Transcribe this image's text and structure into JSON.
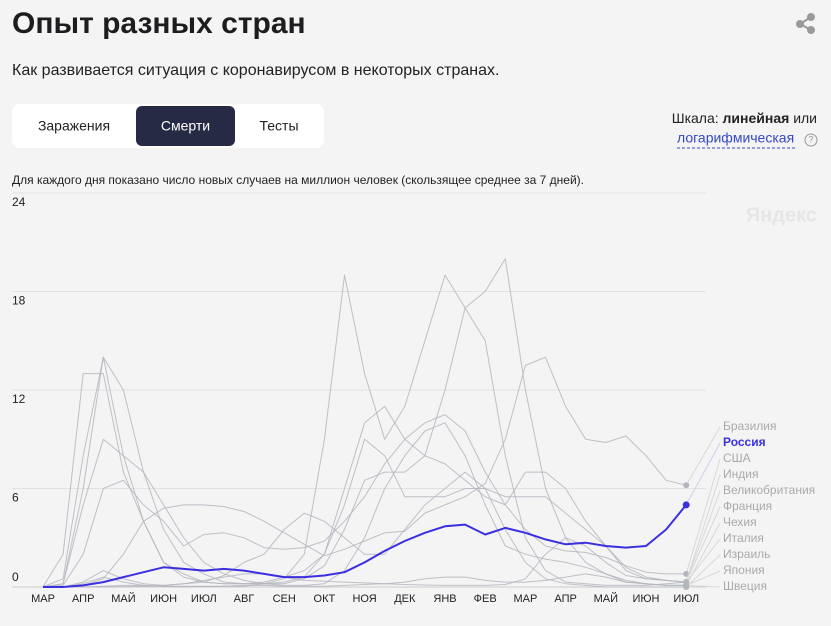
{
  "header": {
    "title": "Опыт разных стран",
    "subtitle": "Как развивается ситуация с коронавирусом в некоторых странах."
  },
  "tabs": {
    "items": [
      "Заражения",
      "Смерти",
      "Тесты"
    ],
    "active": 1
  },
  "scale": {
    "label": "Шкала:",
    "current": "линейная",
    "or": "или",
    "other": "логарифмическая"
  },
  "watermark": "Яндекс",
  "chart_data": {
    "type": "line",
    "note": "Для каждого дня показано число новых случаев на миллион человек (скользящее среднее за 7 дней).",
    "categories": [
      "МАР",
      null,
      "АПР",
      null,
      "МАЙ",
      null,
      "ИЮН",
      null,
      "ИЮЛ",
      null,
      "АВГ",
      null,
      "СЕН",
      null,
      "ОКТ",
      null,
      "НОЯ",
      null,
      "ДЕК",
      null,
      "ЯНВ",
      null,
      "ФЕВ",
      null,
      "МАР",
      null,
      "АПР",
      null,
      "МАЙ",
      null,
      "ИЮН",
      null,
      "ИЮЛ"
    ],
    "ylim": [
      0,
      24
    ],
    "yticks": [
      0,
      6,
      12,
      18,
      24
    ],
    "grid": true,
    "series": [
      {
        "name": "Бразилия",
        "color": "#b4b6be",
        "values": [
          0,
          0,
          0.1,
          0.5,
          2,
          4,
          4.8,
          5,
          5,
          4.9,
          4.6,
          4,
          3.3,
          2.6,
          1.9,
          2.3,
          2.8,
          3.3,
          3.4,
          4.5,
          5,
          5.5,
          6.3,
          9,
          13.5,
          14,
          11,
          9,
          8.8,
          9.2,
          8,
          6.5,
          6.2
        ]
      },
      {
        "name": "Россия",
        "color": "#3b2fe0",
        "highlight": true,
        "values": [
          0,
          0,
          0.1,
          0.3,
          0.6,
          0.9,
          1.2,
          1.1,
          1.0,
          1.1,
          1.0,
          0.8,
          0.6,
          0.6,
          0.7,
          0.9,
          1.5,
          2.2,
          2.8,
          3.3,
          3.7,
          3.8,
          3.2,
          3.6,
          3.3,
          2.9,
          2.6,
          2.7,
          2.5,
          2.4,
          2.5,
          3.5,
          5.0
        ]
      },
      {
        "name": "США",
        "color": "#b4b6be",
        "values": [
          0,
          0.1,
          2,
          6,
          6.5,
          5,
          4,
          2.5,
          3.2,
          3.3,
          3,
          2.4,
          2.3,
          2.4,
          2.8,
          4,
          5.5,
          7.5,
          9,
          10,
          10.5,
          9.5,
          7,
          5,
          3.5,
          2.5,
          2.2,
          2.1,
          1.8,
          1.3,
          0.9,
          0.8,
          0.8
        ]
      },
      {
        "name": "Индия",
        "color": "#b4b6be",
        "values": [
          0,
          0,
          0,
          0,
          0.01,
          0.05,
          0.1,
          0.2,
          0.4,
          0.6,
          0.8,
          0.8,
          0.6,
          0.4,
          0.35,
          0.3,
          0.25,
          0.2,
          0.15,
          0.12,
          0.1,
          0.1,
          0.1,
          0.15,
          0.5,
          2,
          3,
          2.5,
          1.5,
          0.7,
          0.5,
          0.4,
          0.3
        ]
      },
      {
        "name": "Великобритания",
        "color": "#b4b6be",
        "values": [
          0,
          0.2,
          6,
          14,
          12,
          7,
          3.5,
          1.5,
          0.8,
          0.3,
          0.2,
          0.2,
          0.2,
          0.5,
          1.3,
          3.5,
          6.5,
          7,
          7,
          8,
          12,
          17,
          15,
          8,
          3,
          1,
          0.3,
          0.2,
          0.1,
          0.1,
          0.1,
          0.2,
          0.3
        ]
      },
      {
        "name": "Франция",
        "color": "#b4b6be",
        "values": [
          0,
          0.5,
          8,
          14,
          8,
          4,
          1.5,
          0.8,
          0.3,
          0.2,
          0.2,
          0.3,
          0.6,
          1,
          2,
          5,
          9,
          8,
          5.5,
          5.5,
          5.5,
          6,
          6,
          5.5,
          5.5,
          5.5,
          4.5,
          3.5,
          2.5,
          1,
          0.5,
          0.4,
          0.3
        ]
      },
      {
        "name": "Чехия",
        "color": "#b4b6be",
        "values": [
          0,
          0,
          0.2,
          0.6,
          0.3,
          0.1,
          0.05,
          0.05,
          0.05,
          0.05,
          0.05,
          0.2,
          0.5,
          2,
          9,
          19,
          13,
          9,
          11,
          15,
          19,
          17,
          18,
          20,
          12,
          6,
          3,
          1.5,
          0.8,
          0.3,
          0.2,
          0.1,
          0.1
        ]
      },
      {
        "name": "Италия",
        "color": "#b4b6be",
        "values": [
          0,
          2,
          13,
          13,
          7,
          4,
          1.5,
          0.6,
          0.3,
          0.2,
          0.2,
          0.2,
          0.3,
          0.6,
          2,
          6,
          10,
          11,
          9,
          8,
          7.5,
          6.5,
          5.5,
          5,
          7,
          7,
          6,
          4,
          2.5,
          1.2,
          0.6,
          0.4,
          0.3
        ]
      },
      {
        "name": "Израиль",
        "color": "#b4b6be",
        "values": [
          0,
          0,
          0.3,
          1,
          0.5,
          0.2,
          0.1,
          0.2,
          0.3,
          0.7,
          1.5,
          2,
          3.5,
          4.5,
          4,
          3,
          2,
          2,
          3.5,
          5,
          6,
          7,
          6,
          3.5,
          1.5,
          0.5,
          0.2,
          0.1,
          0,
          0,
          0,
          0,
          0
        ]
      },
      {
        "name": "Япония",
        "color": "#b4b6be",
        "values": [
          0,
          0,
          0,
          0.05,
          0.1,
          0.1,
          0.05,
          0.02,
          0.02,
          0.05,
          0.1,
          0.1,
          0.05,
          0.05,
          0.05,
          0.1,
          0.15,
          0.2,
          0.3,
          0.5,
          0.6,
          0.6,
          0.4,
          0.3,
          0.3,
          0.4,
          0.6,
          0.8,
          0.6,
          0.3,
          0.2,
          0.1,
          0.1
        ]
      },
      {
        "name": "Швеция",
        "color": "#b4b6be",
        "values": [
          0,
          0.2,
          5,
          9,
          8,
          7,
          5,
          3,
          1.5,
          0.8,
          0.4,
          0.2,
          0.1,
          0.1,
          0.2,
          1,
          3,
          6,
          8,
          9.5,
          10,
          8,
          5,
          2.5,
          2,
          1.7,
          1.5,
          1.2,
          0.8,
          0.4,
          0.2,
          0.1,
          0.1
        ]
      }
    ]
  }
}
